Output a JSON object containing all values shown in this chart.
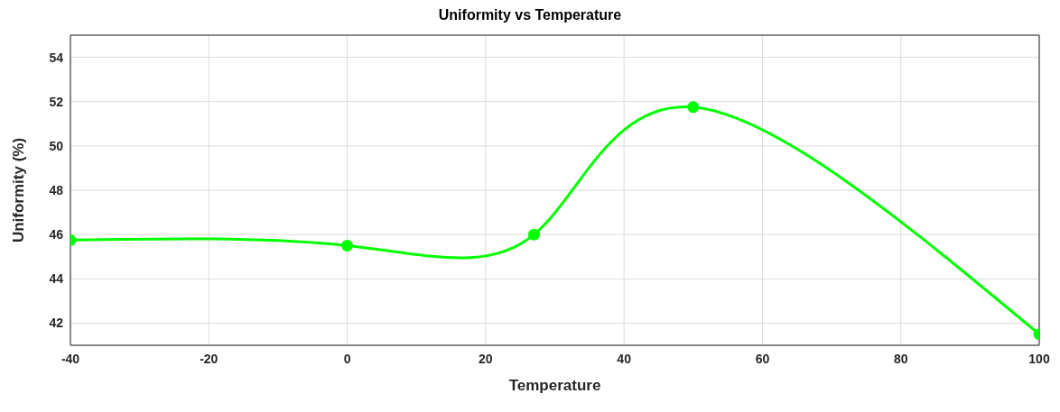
{
  "chart_data": {
    "type": "line",
    "title": "Uniformity vs Temperature",
    "xlabel": "Temperature",
    "ylabel": "Uniformity (%)",
    "x": [
      -40,
      0,
      27,
      50,
      100
    ],
    "series": [
      {
        "color": "#00ff00",
        "values": [
          45.75,
          45.5,
          46.0,
          51.75,
          41.5
        ]
      }
    ],
    "xlim": [
      -40,
      100
    ],
    "xticks": [
      -40,
      -20,
      0,
      20,
      40,
      60,
      80,
      100
    ],
    "ylim": [
      41,
      55
    ],
    "yticks": [
      42,
      44,
      46,
      48,
      50,
      52,
      54
    ],
    "grid": true,
    "legend": false,
    "marker": "circle",
    "line_style": "solid"
  }
}
